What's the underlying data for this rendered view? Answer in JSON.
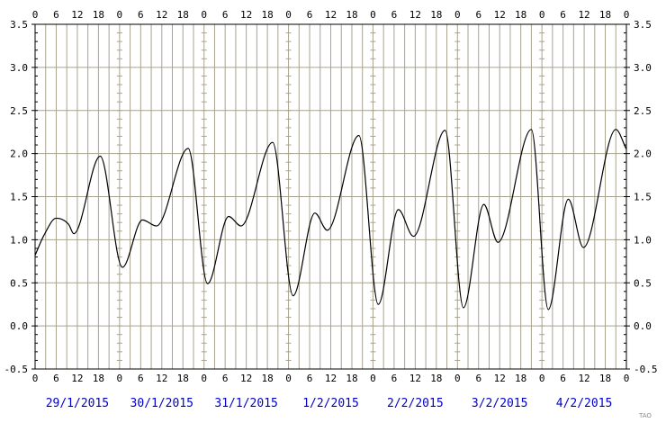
{
  "chart_data": {
    "type": "line",
    "title": "",
    "xlabel": "",
    "ylabel": "",
    "ylim": [
      -0.5,
      3.5
    ],
    "xlim_hours": [
      0,
      168
    ],
    "y_ticks": [
      "-0.5",
      "0.0",
      "0.5",
      "1.0",
      "1.5",
      "2.0",
      "2.5",
      "3.0",
      "3.5"
    ],
    "hour_ticks_top": [
      "0",
      "6",
      "12",
      "18",
      "0",
      "6",
      "12",
      "18",
      "0",
      "6",
      "12",
      "18",
      "0",
      "6",
      "12",
      "18",
      "0",
      "6",
      "12",
      "18",
      "0",
      "6",
      "12",
      "18",
      "0",
      "6",
      "12",
      "18",
      "0"
    ],
    "hour_ticks_bottom": [
      "0",
      "6",
      "12",
      "18",
      "0",
      "6",
      "12",
      "18",
      "0",
      "6",
      "12",
      "18",
      "0",
      "6",
      "12",
      "18",
      "0",
      "6",
      "12",
      "18",
      "0",
      "6",
      "12",
      "18",
      "0",
      "6",
      "12",
      "18",
      "0"
    ],
    "dates": [
      "29/1/2015",
      "30/1/2015",
      "31/1/2015",
      "1/2/2015",
      "2/2/2015",
      "3/2/2015",
      "4/2/2015"
    ],
    "grid": true,
    "colors": {
      "grid": "#a8a290",
      "line": "#000000",
      "dates": "#0000cc",
      "frame": "#000000"
    },
    "series": [
      {
        "x": [
          0,
          2.5,
          6,
          9.5,
          11,
          18.5,
          24.8,
          30.5,
          34.5,
          43.5,
          49,
          55,
          58.5,
          67.5,
          73.3,
          79.5,
          83,
          92,
          97.5,
          103.2,
          107.5,
          116.5,
          121.7,
          127.5,
          131.5,
          141,
          145.8,
          151.5,
          155.8,
          165,
          168
        ],
        "y": [
          0.82,
          1.05,
          1.25,
          1.18,
          1.07,
          1.97,
          0.68,
          1.23,
          1.16,
          2.06,
          0.49,
          1.27,
          1.16,
          2.13,
          0.35,
          1.31,
          1.11,
          2.21,
          0.25,
          1.35,
          1.04,
          2.27,
          0.21,
          1.41,
          0.97,
          2.28,
          0.19,
          1.47,
          0.91,
          2.28,
          2.05
        ]
      }
    ],
    "credit": "TAO"
  }
}
